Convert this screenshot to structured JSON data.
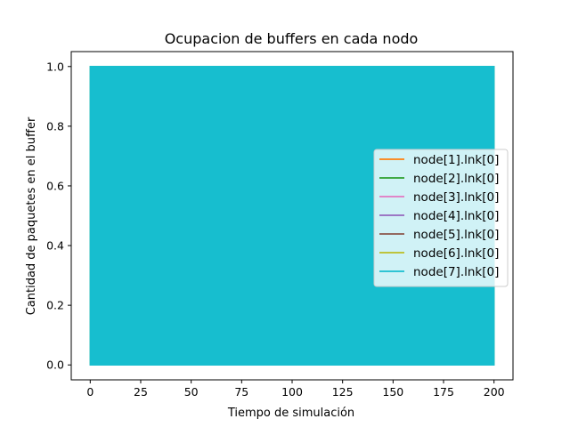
{
  "chart_data": {
    "type": "line",
    "title": "Ocupacion de buffers en cada nodo",
    "xlabel": "Tiempo de simulación",
    "ylabel": "Cantidad de paquetes en el buffer",
    "xlim": [
      -9.4,
      209.4
    ],
    "ylim": [
      -0.05,
      1.05
    ],
    "xticks": [
      0,
      25,
      50,
      75,
      100,
      125,
      150,
      175,
      200
    ],
    "yticks": [
      0.0,
      0.2,
      0.4,
      0.6,
      0.8,
      1.0
    ],
    "xtick_labels": [
      "0",
      "25",
      "50",
      "75",
      "100",
      "125",
      "150",
      "175",
      "200"
    ],
    "ytick_labels": [
      "0.0",
      "0.2",
      "0.4",
      "0.6",
      "0.8",
      "1.0"
    ],
    "grid": false,
    "legend_position": "center-right",
    "x_range": [
      0,
      200
    ],
    "value_range": [
      0,
      1
    ],
    "series": [
      {
        "name": "node[1].lnk[0]",
        "color": "#ff7f0e"
      },
      {
        "name": "node[2].lnk[0]",
        "color": "#2ca02c"
      },
      {
        "name": "node[3].lnk[0]",
        "color": "#e377c2"
      },
      {
        "name": "node[4].lnk[0]",
        "color": "#9467bd"
      },
      {
        "name": "node[5].lnk[0]",
        "color": "#8c564b"
      },
      {
        "name": "node[6].lnk[0]",
        "color": "#bcbd22"
      },
      {
        "name": "node[7].lnk[0]",
        "color": "#17becf"
      }
    ]
  }
}
